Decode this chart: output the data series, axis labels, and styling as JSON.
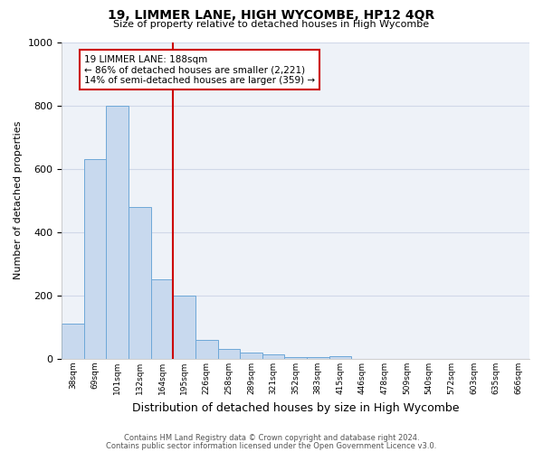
{
  "title": "19, LIMMER LANE, HIGH WYCOMBE, HP12 4QR",
  "subtitle": "Size of property relative to detached houses in High Wycombe",
  "xlabel": "Distribution of detached houses by size in High Wycombe",
  "ylabel": "Number of detached properties",
  "bar_labels": [
    "38sqm",
    "69sqm",
    "101sqm",
    "132sqm",
    "164sqm",
    "195sqm",
    "226sqm",
    "258sqm",
    "289sqm",
    "321sqm",
    "352sqm",
    "383sqm",
    "415sqm",
    "446sqm",
    "478sqm",
    "509sqm",
    "540sqm",
    "572sqm",
    "603sqm",
    "635sqm",
    "666sqm"
  ],
  "bar_values": [
    110,
    630,
    800,
    480,
    250,
    200,
    60,
    30,
    20,
    15,
    5,
    5,
    10,
    0,
    0,
    0,
    0,
    0,
    0,
    0,
    0
  ],
  "bar_color": "#c8d9ee",
  "bar_edge_color": "#6ea8d8",
  "vline_x": 4.5,
  "vline_color": "#cc0000",
  "annotation_text": "19 LIMMER LANE: 188sqm\n← 86% of detached houses are smaller (2,221)\n14% of semi-detached houses are larger (359) →",
  "annotation_box_color": "#ffffff",
  "annotation_box_edge": "#cc0000",
  "ylim": [
    0,
    1000
  ],
  "footnote1": "Contains HM Land Registry data © Crown copyright and database right 2024.",
  "footnote2": "Contains public sector information licensed under the Open Government Licence v3.0.",
  "grid_color": "#d0d8e8",
  "background_color": "#eef2f8",
  "fig_width": 6.0,
  "fig_height": 5.0,
  "dpi": 100
}
